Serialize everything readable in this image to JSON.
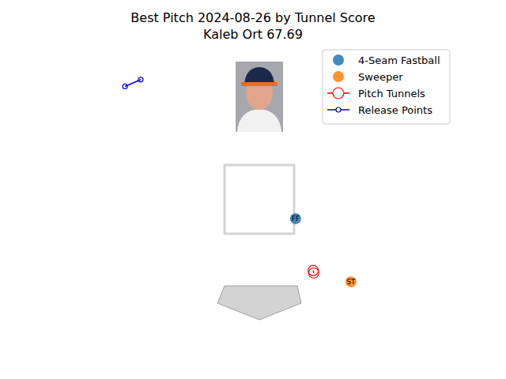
{
  "chart_data": {
    "type": "scatter",
    "title": "Best Pitch 2024-08-26 by Tunnel Score",
    "subtitle": "Kaleb Ort 67.69",
    "xlim": [
      -4,
      4
    ],
    "ylim": [
      -0.6,
      5.35
    ],
    "tick_labels": false,
    "grid": false,
    "legend": "upper right",
    "series": [
      {
        "name": "4-Seam Fastball",
        "color": "#1f77b4",
        "marker": "circle",
        "x": [
          0.74
        ],
        "values": [
          1.82
        ],
        "labels": [
          "FF"
        ]
      },
      {
        "name": "Sweeper",
        "color": "#ff7f0e",
        "marker": "circle",
        "x": [
          1.87
        ],
        "values": [
          0.53
        ],
        "labels": [
          "ST"
        ]
      },
      {
        "name": "Pitch Tunnels",
        "color": "#ff0000",
        "marker": "open_circle",
        "line_style": "solid",
        "x": [
          1.1,
          1.11
        ],
        "values": [
          0.76,
          0.71
        ]
      },
      {
        "name": "Release Points",
        "color": "#0000ff",
        "marker": "small_open_circle",
        "line_style": "solid",
        "x": [
          -2.74,
          -2.42
        ],
        "values": [
          4.52,
          4.66
        ]
      }
    ]
  }
}
